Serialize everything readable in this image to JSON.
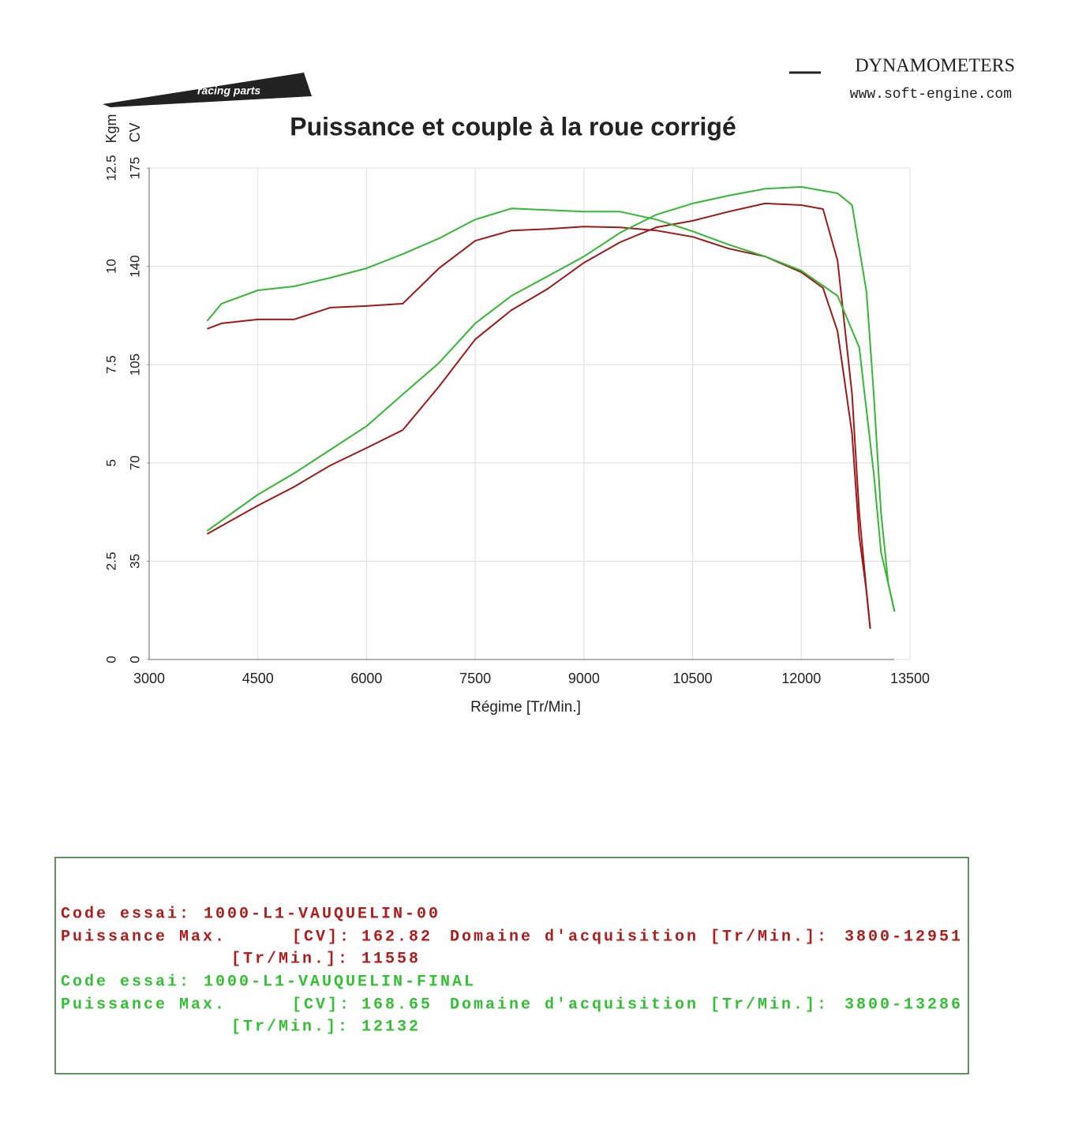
{
  "header": {
    "brand": "DYNAMOMETERS",
    "url": "www.soft-engine.com"
  },
  "chart_data": {
    "type": "line",
    "title": "Puissance et couple à la roue corrigé",
    "x_label": "Régime [Tr/Min.]",
    "y_label": "CV",
    "y2_label": "Kgm",
    "xlim": [
      3000,
      13500
    ],
    "xticks": [
      3000,
      4500,
      6000,
      7500,
      9000,
      10500,
      12000,
      13500
    ],
    "ylim": [
      0,
      175
    ],
    "yticks": [
      0,
      35,
      70,
      105,
      140,
      175
    ],
    "y2lim": [
      0,
      12.5
    ],
    "y2ticks": [
      0,
      2.5,
      5,
      7.5,
      10,
      12.5
    ],
    "grid": true,
    "series": [
      {
        "color": "#a01818",
        "axis": "y",
        "x": [
          3800,
          4500,
          5000,
          5500,
          6000,
          6500,
          7000,
          7500,
          8000,
          8500,
          9000,
          9500,
          10000,
          10500,
          11000,
          11500,
          12000,
          12300,
          12500,
          12700,
          12800,
          12900,
          12951
        ],
        "values": [
          44.7,
          54.8,
          61.5,
          69.1,
          75.3,
          81.7,
          97.2,
          114.0,
          124.4,
          132.0,
          141.3,
          148.6,
          153.9,
          156.2,
          159.5,
          162.4,
          161.8,
          160.4,
          142.1,
          94.4,
          52.2,
          24.2,
          11.0
        ]
      },
      {
        "color": "#a01818",
        "axis": "y2",
        "x": [
          3800,
          4000,
          4500,
          5000,
          5500,
          6000,
          6500,
          7000,
          7500,
          8000,
          8500,
          9000,
          9500,
          10000,
          10500,
          11000,
          11500,
          12000,
          12300,
          12500,
          12700,
          12800,
          12900,
          12951
        ],
        "values": [
          8.41,
          8.55,
          8.65,
          8.65,
          8.95,
          8.99,
          9.05,
          9.95,
          10.65,
          10.91,
          10.95,
          11.01,
          10.99,
          10.91,
          10.75,
          10.45,
          10.25,
          9.85,
          9.45,
          8.35,
          5.74,
          3.13,
          1.73,
          0.78
        ]
      },
      {
        "color": "#33b833",
        "axis": "y",
        "x": [
          3800,
          4500,
          5000,
          5500,
          6000,
          6500,
          7000,
          7500,
          8000,
          8500,
          9000,
          9500,
          10000,
          10500,
          11000,
          11500,
          12000,
          12500,
          12700,
          12900,
          13000,
          13100,
          13200,
          13286
        ],
        "values": [
          45.8,
          58.7,
          66.3,
          74.7,
          83.1,
          94.4,
          105.6,
          119.7,
          129.5,
          136.5,
          143.5,
          152.0,
          158.4,
          162.4,
          165.2,
          167.6,
          168.3,
          166.0,
          161.8,
          130.9,
          94.4,
          52.2,
          27.0,
          17.1
        ]
      },
      {
        "color": "#33b833",
        "axis": "y2",
        "x": [
          3800,
          4000,
          4500,
          5000,
          5500,
          6000,
          6500,
          7000,
          7500,
          8000,
          8500,
          9000,
          9500,
          10000,
          10500,
          11000,
          11500,
          12000,
          12500,
          12800,
          13000,
          13100,
          13200,
          13286
        ],
        "values": [
          8.61,
          9.05,
          9.39,
          9.49,
          9.71,
          9.95,
          10.31,
          10.71,
          11.19,
          11.47,
          11.43,
          11.39,
          11.39,
          11.19,
          10.89,
          10.55,
          10.25,
          9.89,
          9.25,
          7.94,
          4.73,
          2.73,
          1.93,
          1.22
        ]
      }
    ]
  },
  "report": [
    {
      "color": "#b01c1c",
      "code_label": "Code essai:",
      "code": "1000-L1-VAUQUELIN-00",
      "power_label": "Puissance Max.",
      "power_unit": "[CV]:",
      "power": 162.82,
      "range_label": "Domaine d'acquisition [Tr/Min.]:",
      "range": "3800-12951",
      "rpm_unit": "[Tr/Min.]:",
      "rpm": 11558
    },
    {
      "color": "#33c033",
      "code_label": "Code essai:",
      "code": "1000-L1-VAUQUELIN-FINAL",
      "power_label": "Puissance Max.",
      "power_unit": "[CV]:",
      "power": 168.65,
      "range_label": "Domaine d'acquisition [Tr/Min.]:",
      "range": "3800-13286",
      "rpm_unit": "[Tr/Min.]:",
      "rpm": 12132
    }
  ]
}
